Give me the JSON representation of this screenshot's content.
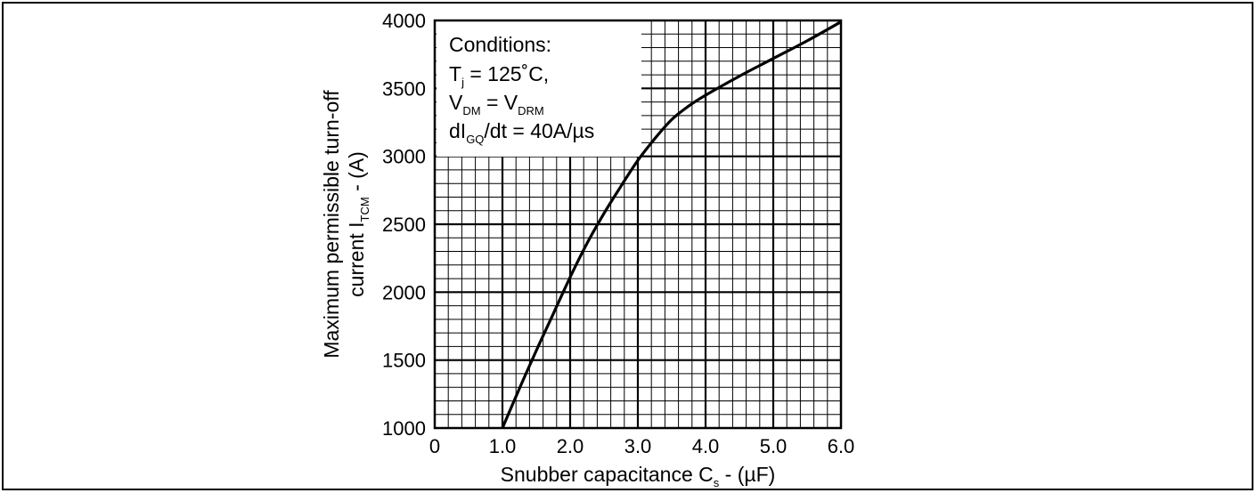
{
  "chart_data": {
    "type": "line",
    "xlabel": {
      "main": "Snubber capacitance C",
      "sub": "s",
      "tail": " - (µF)"
    },
    "ylabel": {
      "line1": "Maximum permissible turn-off",
      "line2_main": "current I",
      "line2_sub": "TCM",
      "line2_tail": " - (A)"
    },
    "xlim": [
      0,
      6.0
    ],
    "ylim": [
      1000,
      4000
    ],
    "x_ticks": [
      "0",
      "1.0",
      "2.0",
      "3.0",
      "4.0",
      "5.0",
      "6.0"
    ],
    "y_ticks": [
      "1000",
      "1500",
      "2000",
      "2500",
      "3000",
      "3500",
      "4000"
    ],
    "grid": true,
    "conditions": {
      "title": "Conditions:",
      "line1": {
        "a": "T",
        "a_sub": "j",
        "b": " = 125˚C,"
      },
      "line2": {
        "a": "V",
        "a_sub": "DM",
        "b": " = V",
        "b_sub": "DRM"
      },
      "line3": {
        "a": "dI",
        "a_sub": "GQ",
        "b": "/dt = 40A/µs"
      }
    },
    "series": [
      {
        "color": "#000000",
        "x": [
          1.0,
          1.25,
          1.5,
          1.75,
          2.0,
          2.25,
          2.5,
          2.75,
          3.0,
          3.25,
          3.5,
          3.75,
          4.0,
          4.5,
          5.0,
          5.5,
          6.0
        ],
        "y": [
          1000,
          1290,
          1570,
          1840,
          2110,
          2360,
          2580,
          2780,
          2970,
          3130,
          3270,
          3370,
          3450,
          3590,
          3720,
          3850,
          3990
        ]
      }
    ]
  }
}
